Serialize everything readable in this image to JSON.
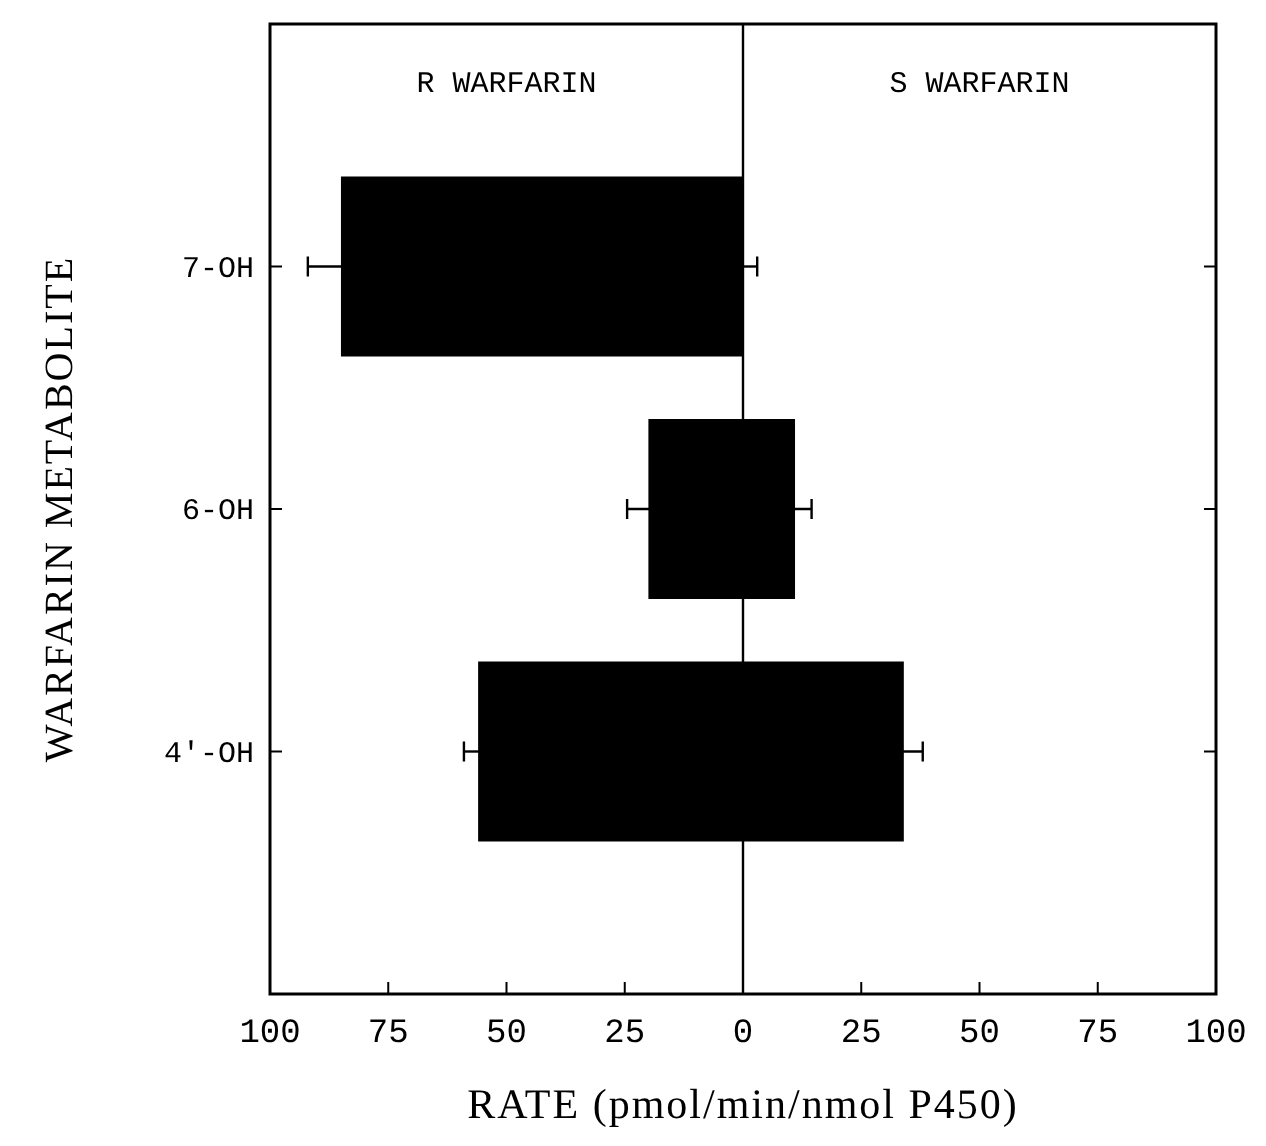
{
  "chart_data": {
    "type": "bar",
    "orientation": "horizontal",
    "stacked": true,
    "xlabel": "RATE (pmol/min/nmol P450)",
    "ylabel": "WARFARIN METABOLITE",
    "categories": [
      "7-OH",
      "6-OH",
      "4'-OH"
    ],
    "series": [
      {
        "color": "#000000",
        "values": [
          -85,
          -20,
          -56
        ],
        "errors": [
          7,
          4.5,
          3
        ]
      },
      {
        "color": "#000000",
        "values": [
          0,
          11,
          34
        ],
        "errors": [
          3,
          3.5,
          4
        ]
      }
    ],
    "xlim": [
      -100,
      100
    ],
    "xticks": [
      {
        "value": -100,
        "label": "100"
      },
      {
        "value": -75,
        "label": "75"
      },
      {
        "value": -50,
        "label": "50"
      },
      {
        "value": -25,
        "label": "25"
      },
      0,
      25,
      50,
      75,
      100
    ],
    "ref_lines": [
      {
        "axis": "x",
        "value": 0,
        "color": "#000000"
      }
    ],
    "annotations": [
      "R WARFARIN",
      "S WARFARIN"
    ]
  }
}
